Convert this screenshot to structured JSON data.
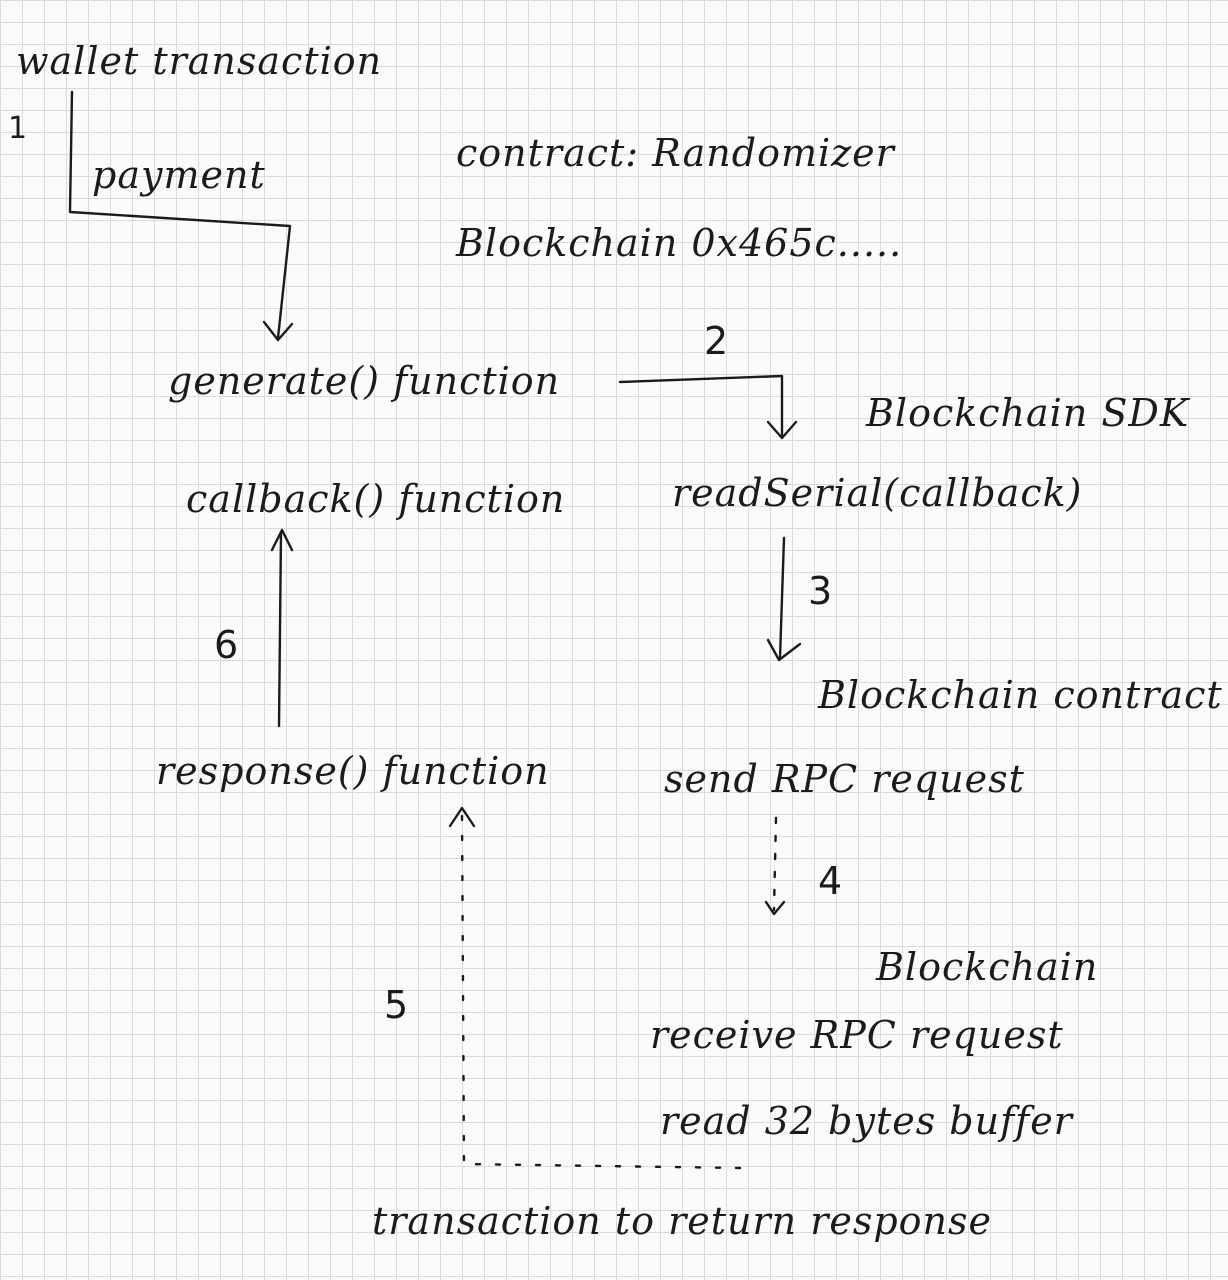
{
  "labels": {
    "wallet_transaction": "wallet transaction",
    "payment": "payment",
    "contract": "contract: Randomizer",
    "blockchain_address": "Blockchain  0x465c.....",
    "generate_function": "generate() function",
    "blockchain_sdk": "Blockchain SDK",
    "callback_function": "callback() function",
    "read_serial": "readSerial(callback)",
    "blockchain_contract": "Blockchain contract",
    "response_function": "response() function",
    "send_rpc": "send RPC request",
    "blockchain": "Blockchain",
    "receive_rpc": "receive RPC request",
    "read_bytes": "read 32 bytes buffer",
    "return_transaction": "transaction to return response"
  },
  "steps": {
    "s1": "1",
    "s2": "2",
    "s3": "3",
    "s4": "4",
    "s5": "5",
    "s6": "6"
  }
}
